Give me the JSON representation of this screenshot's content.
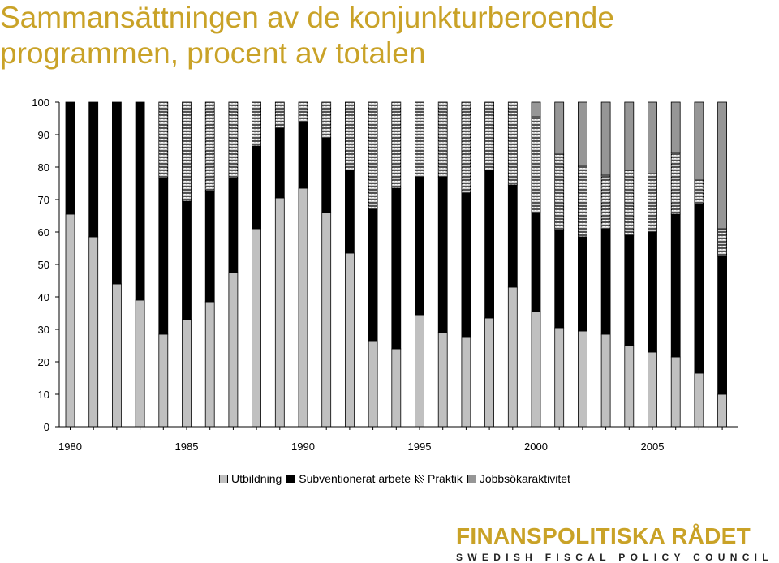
{
  "title": {
    "line1": "Sammansättningen av de konjunkturberoende",
    "line2": "programmen, procent av totalen"
  },
  "logo": {
    "main": "FINANSPOLITISKA RÅDET",
    "sub": "SWEDISH FISCAL POLICY COUNCIL"
  },
  "legend": {
    "items": [
      "Utbildning",
      "Subventionerat arbete",
      "Praktik",
      "Jobbsökaraktivitet"
    ]
  },
  "colors": {
    "title": "#c9a227",
    "utbildning": "#c0c0c0",
    "subventionerat": "#000000",
    "jobbsok": "#969696",
    "axis": "#000000"
  },
  "chart_data": {
    "type": "bar",
    "stacked": true,
    "title": "Sammansättningen av de konjunkturberoende programmen, procent av totalen",
    "xlabel": "",
    "ylabel": "",
    "ylim": [
      0,
      100
    ],
    "yticks": [
      0,
      10,
      20,
      30,
      40,
      50,
      60,
      70,
      80,
      90,
      100
    ],
    "xtick_labels": [
      "1980",
      "1985",
      "1990",
      "1995",
      "2000",
      "2005"
    ],
    "categories": [
      1980,
      1981,
      1982,
      1983,
      1984,
      1985,
      1986,
      1987,
      1988,
      1989,
      1990,
      1991,
      1992,
      1993,
      1994,
      1995,
      1996,
      1997,
      1998,
      1999,
      2000,
      2001,
      2002,
      2003,
      2004,
      2005,
      2006,
      2007,
      2008
    ],
    "legend_position": "bottom",
    "grid": false,
    "series": [
      {
        "name": "Utbildning",
        "pattern": "solid-light",
        "values": [
          65.5,
          58.5,
          44,
          39,
          28.5,
          33,
          38.5,
          47.5,
          61,
          70.5,
          73.5,
          66,
          53.5,
          26.5,
          24,
          34.5,
          29,
          27.5,
          33.5,
          43,
          35.5,
          30.5,
          29.5,
          28.5,
          25,
          23,
          21.5,
          16.5,
          10
        ]
      },
      {
        "name": "Subventionerat arbete",
        "pattern": "solid-black",
        "values": [
          34.5,
          41.5,
          56,
          61,
          48,
          36.5,
          34,
          29,
          25.5,
          21.5,
          20.5,
          23,
          25.5,
          40.5,
          49.5,
          42.5,
          48,
          44.5,
          45.5,
          31.5,
          30.5,
          30,
          29,
          32.5,
          34,
          37,
          44,
          52,
          42.5
        ]
      },
      {
        "name": "Praktik",
        "pattern": "zigzag",
        "values": [
          0,
          0,
          0,
          0,
          23.5,
          30.5,
          27.5,
          23.5,
          13.5,
          8,
          6,
          11,
          21,
          33,
          26.5,
          23,
          23,
          28,
          21,
          25.5,
          29.5,
          23.5,
          22,
          16.5,
          20,
          18,
          19,
          7.5,
          8.5
        ]
      },
      {
        "name": "Jobbsökaraktivitet",
        "pattern": "solid-dark",
        "values": [
          0,
          0,
          0,
          0,
          0,
          0,
          0,
          0,
          0,
          0,
          0,
          0,
          0,
          0,
          0,
          0,
          0,
          0,
          0,
          0,
          4.5,
          16,
          19.5,
          22.5,
          21,
          22,
          15.5,
          24,
          39
        ]
      }
    ]
  }
}
